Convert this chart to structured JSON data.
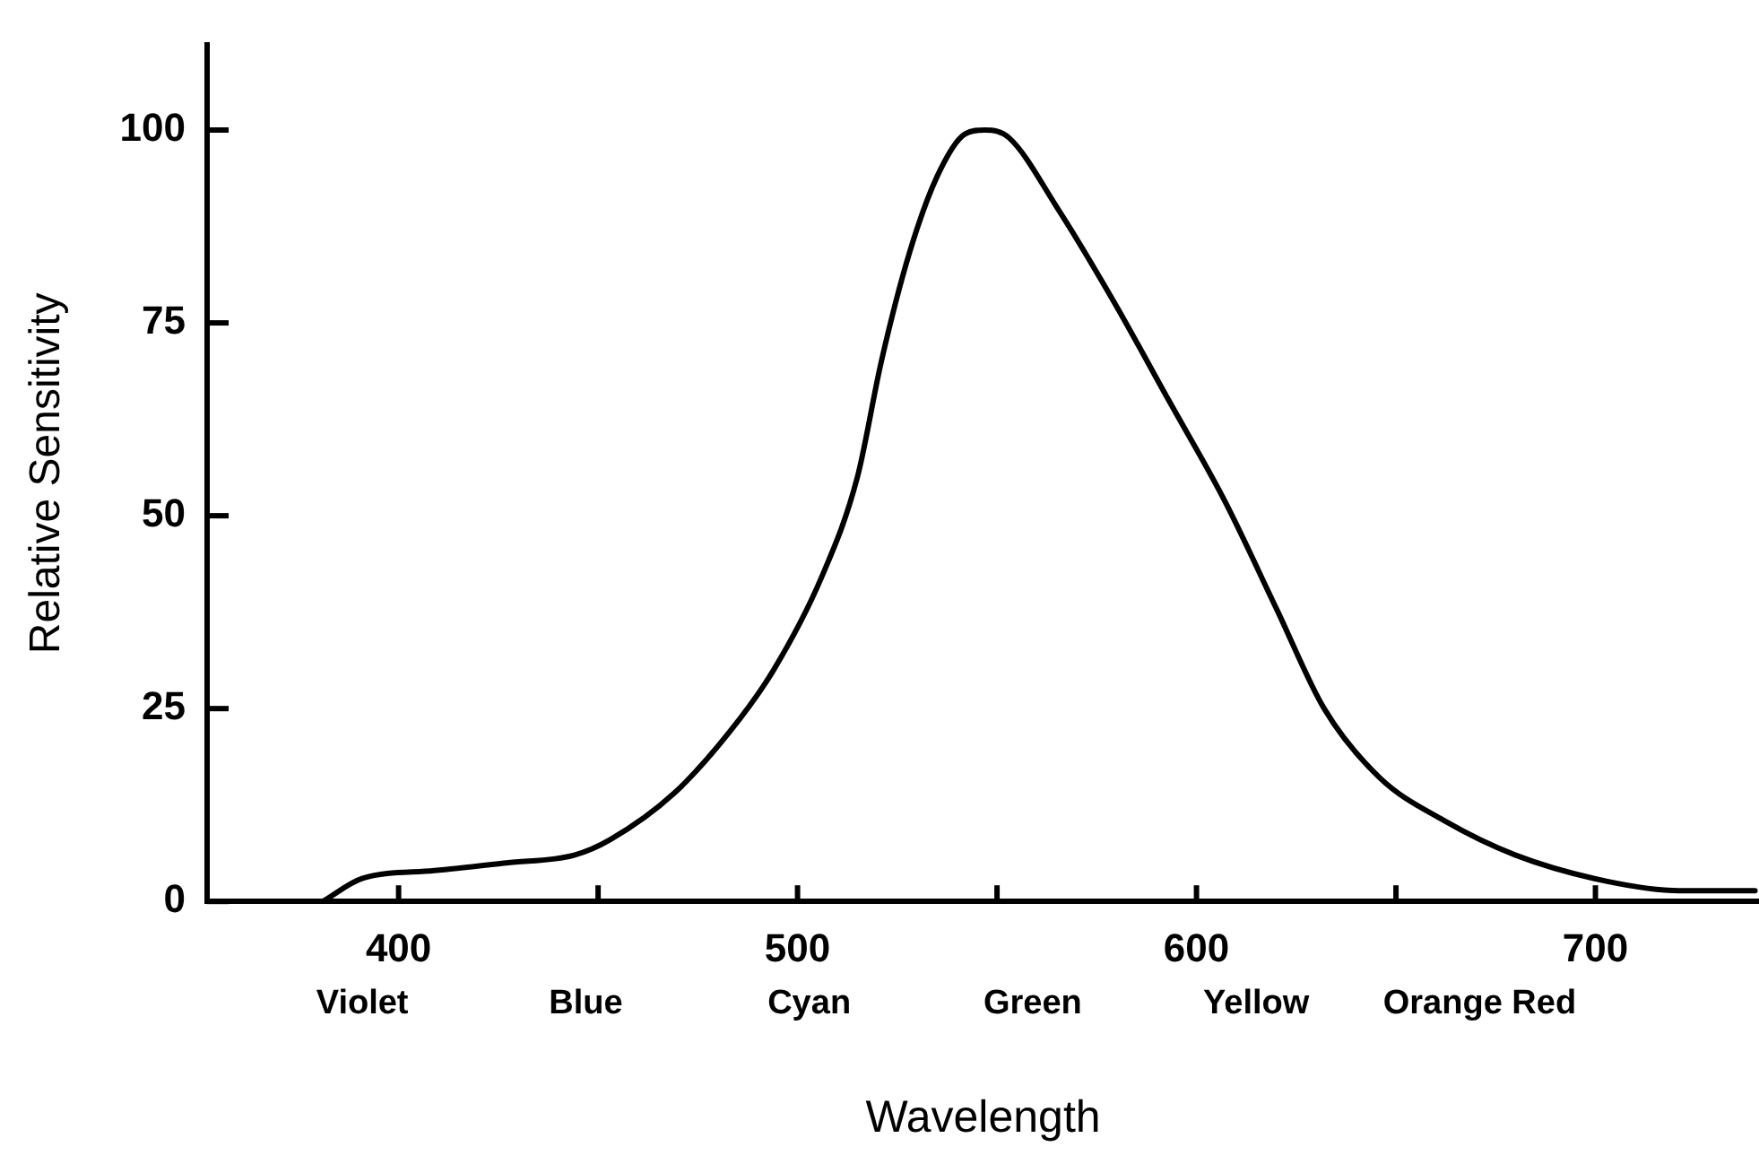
{
  "chart_data": {
    "type": "line",
    "xlabel": "Wavelength",
    "ylabel": "Relative Sensitivity",
    "annotations": [
      "Violet",
      "Blue",
      "Cyan",
      "Green",
      "Yellow",
      "Orange Red"
    ],
    "xlim": [
      352,
      741
    ],
    "xticks": [
      400,
      {
        "value": 450,
        "label": null
      },
      500,
      {
        "value": 550,
        "label": null
      },
      600,
      {
        "value": 650,
        "label": null
      },
      700
    ],
    "ylim": [
      0,
      111
    ],
    "yticks": [
      0,
      25,
      50,
      75,
      100
    ],
    "marker": "none",
    "line_style": "solid",
    "series": [
      {
        "color": "#000000",
        "x": [
          381,
          391,
          409,
          427,
          444,
          453,
          469,
          483,
          494,
          506,
          515,
          521,
          528,
          535,
          542,
          547,
          553,
          565,
          579,
          593,
          607,
          620,
          632,
          646,
          662,
          680,
          703,
          721,
          740
        ],
        "values": [
          0,
          3,
          4,
          5,
          6,
          8,
          14,
          22,
          30,
          42,
          55,
          70,
          84,
          94,
          99.5,
          100,
          99,
          90,
          78,
          65,
          52,
          38,
          25,
          16,
          10.5,
          6,
          2.6,
          1.4,
          1.4
        ]
      }
    ]
  }
}
